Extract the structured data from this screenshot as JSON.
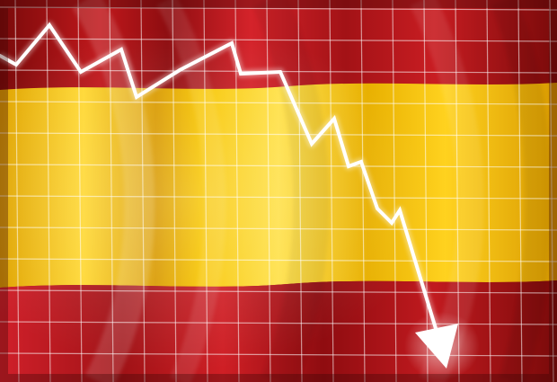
{
  "scene": {
    "description_free": true,
    "colors": {
      "red_dark": "#7a0a0a",
      "red_mid": "#b8161a",
      "red_bright": "#d4232a",
      "yellow_dark": "#d99a00",
      "yellow_mid": "#f2c200",
      "yellow_bright": "#ffe14a",
      "grid_line": "#ffffff",
      "trend_line": "#ffffff"
    },
    "icons": {
      "trend": "downward-trend-arrow-icon"
    }
  }
}
